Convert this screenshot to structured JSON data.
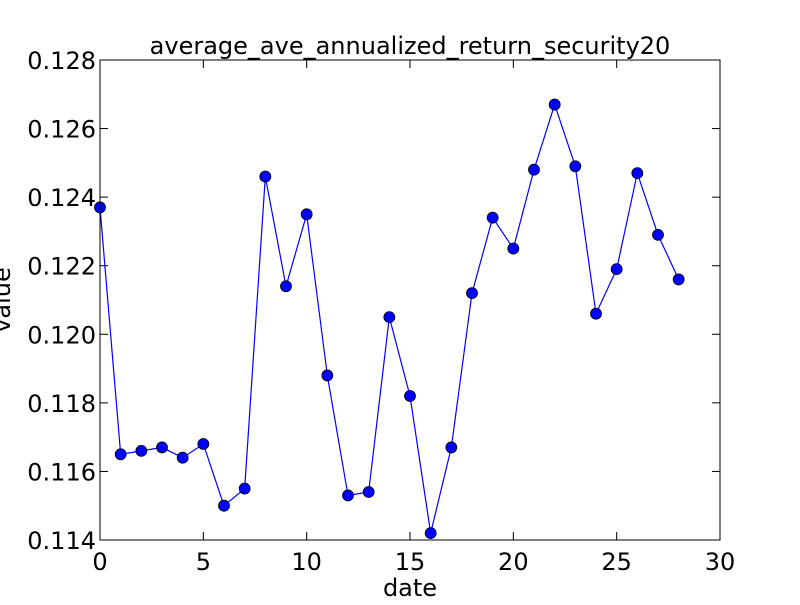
{
  "chart_data": {
    "type": "line",
    "title": "average_ave_annualized_return_security20",
    "xlabel": "date",
    "ylabel": "value",
    "xlim": [
      0,
      30
    ],
    "ylim": [
      0.114,
      0.128
    ],
    "xticks": [
      0,
      5,
      10,
      15,
      20,
      25,
      30
    ],
    "xtick_labels": [
      "0",
      "5",
      "10",
      "15",
      "20",
      "25",
      "30"
    ],
    "yticks": [
      0.114,
      0.116,
      0.118,
      0.12,
      0.122,
      0.124,
      0.126,
      0.128
    ],
    "ytick_labels": [
      "0.114",
      "0.116",
      "0.118",
      "0.120",
      "0.122",
      "0.124",
      "0.126",
      "0.128"
    ],
    "grid": false,
    "series": [
      {
        "color": "#0000ff",
        "marker": "circle",
        "x": [
          0,
          1,
          2,
          3,
          4,
          5,
          6,
          7,
          8,
          9,
          10,
          11,
          12,
          13,
          14,
          15,
          16,
          17,
          18,
          19,
          20,
          21,
          22,
          23,
          24,
          25,
          26,
          27,
          28
        ],
        "y": [
          0.1237,
          0.1165,
          0.1166,
          0.1167,
          0.1164,
          0.1168,
          0.115,
          0.1155,
          0.1246,
          0.1214,
          0.1235,
          0.1188,
          0.1153,
          0.1154,
          0.1205,
          0.1182,
          0.1142,
          0.1167,
          0.1212,
          0.1234,
          0.1225,
          0.1248,
          0.1267,
          0.1249,
          0.1206,
          0.1219,
          0.1247,
          0.1229,
          0.1216
        ]
      }
    ]
  }
}
